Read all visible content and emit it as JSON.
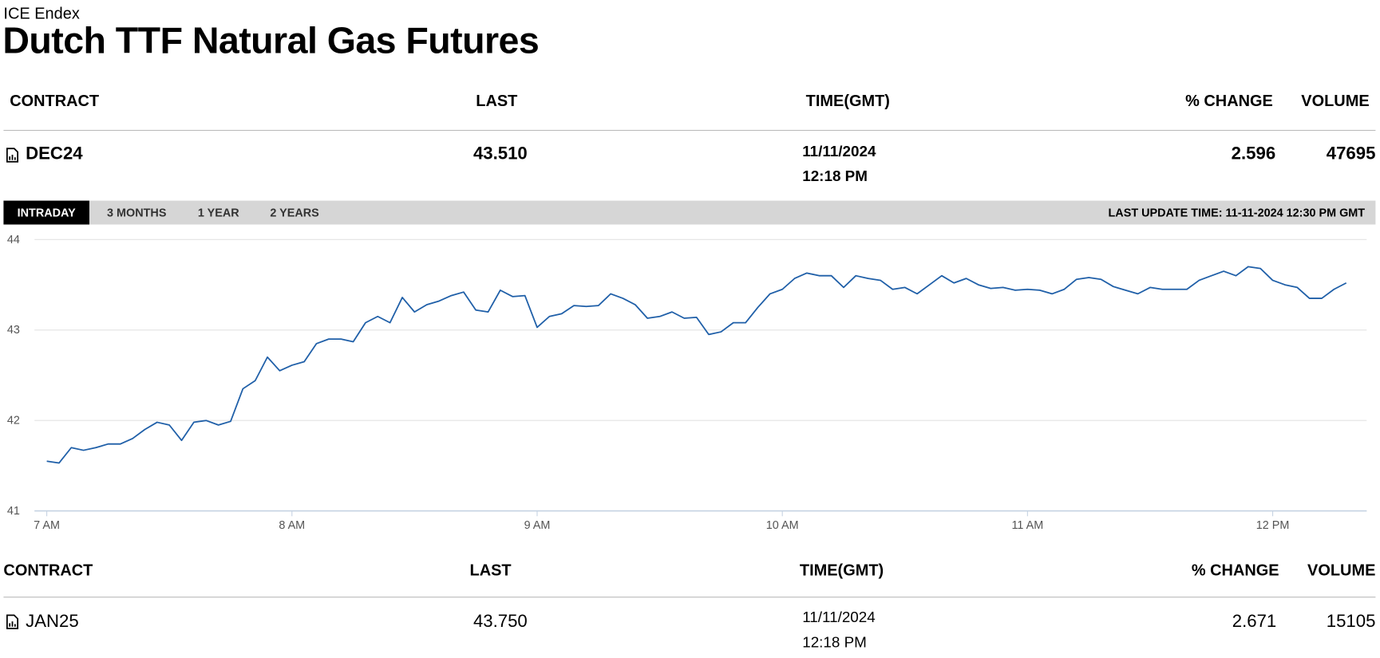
{
  "header": {
    "exchange": "ICE Endex",
    "title": "Dutch TTF Natural Gas Futures"
  },
  "tables": [
    {
      "columns": [
        "CONTRACT",
        "LAST",
        "TIME(GMT)",
        "% CHANGE",
        "VOLUME"
      ],
      "row": {
        "contract": "DEC24",
        "last": "43.510",
        "date": "11/11/2024",
        "time": "12:18 PM",
        "change": 2.596,
        "volume": 47695
      }
    },
    {
      "columns": [
        "CONTRACT",
        "LAST",
        "TIME(GMT)",
        "% CHANGE",
        "VOLUME"
      ],
      "row": {
        "contract": "JAN25",
        "last": "43.750",
        "date": "11/11/2024",
        "time": "12:18 PM",
        "change": 2.671,
        "volume": 15105
      }
    }
  ],
  "tabs": [
    "INTRADAY",
    "3 MONTHS",
    "1 YEAR",
    "2 YEARS"
  ],
  "active_tab": 0,
  "last_update": "LAST UPDATE TIME: 11-11-2024 12:30 PM GMT",
  "chart_data": {
    "type": "line",
    "color": "#1f5fa8",
    "grid": true,
    "x": [
      "07:00",
      "07:03",
      "07:06",
      "07:09",
      "07:12",
      "07:15",
      "07:18",
      "07:21",
      "07:24",
      "07:27",
      "07:30",
      "07:33",
      "07:36",
      "07:39",
      "07:42",
      "07:45",
      "07:48",
      "07:51",
      "07:54",
      "07:57",
      "08:00",
      "08:03",
      "08:06",
      "08:09",
      "08:12",
      "08:15",
      "08:18",
      "08:21",
      "08:24",
      "08:27",
      "08:30",
      "08:33",
      "08:36",
      "08:39",
      "08:42",
      "08:45",
      "08:48",
      "08:51",
      "08:54",
      "08:57",
      "09:00",
      "09:03",
      "09:06",
      "09:09",
      "09:12",
      "09:15",
      "09:18",
      "09:21",
      "09:24",
      "09:27",
      "09:30",
      "09:33",
      "09:36",
      "09:39",
      "09:42",
      "09:45",
      "09:48",
      "09:51",
      "09:54",
      "09:57",
      "10:00",
      "10:03",
      "10:06",
      "10:09",
      "10:12",
      "10:15",
      "10:18",
      "10:21",
      "10:24",
      "10:27",
      "10:30",
      "10:33",
      "10:36",
      "10:39",
      "10:42",
      "10:45",
      "10:48",
      "10:51",
      "10:54",
      "10:57",
      "11:00",
      "11:03",
      "11:06",
      "11:09",
      "11:12",
      "11:15",
      "11:18",
      "11:21",
      "11:24",
      "11:27",
      "11:30",
      "11:33",
      "11:36",
      "11:39",
      "11:42",
      "11:45",
      "11:48",
      "11:51",
      "11:54",
      "11:57",
      "12:00",
      "12:03",
      "12:06",
      "12:09",
      "12:12",
      "12:15",
      "12:18"
    ],
    "values": [
      41.55,
      41.53,
      41.7,
      41.67,
      41.7,
      41.74,
      41.74,
      41.8,
      41.9,
      41.98,
      41.95,
      41.78,
      41.98,
      42.0,
      41.95,
      41.99,
      42.35,
      42.44,
      42.7,
      42.55,
      42.61,
      42.65,
      42.85,
      42.9,
      42.9,
      42.87,
      43.08,
      43.15,
      43.08,
      43.36,
      43.2,
      43.28,
      43.32,
      43.38,
      43.42,
      43.22,
      43.2,
      43.44,
      43.37,
      43.38,
      43.03,
      43.15,
      43.18,
      43.27,
      43.26,
      43.27,
      43.4,
      43.35,
      43.28,
      43.13,
      43.15,
      43.2,
      43.13,
      43.14,
      42.95,
      42.98,
      43.08,
      43.08,
      43.25,
      43.4,
      43.45,
      43.57,
      43.63,
      43.6,
      43.6,
      43.47,
      43.6,
      43.57,
      43.55,
      43.45,
      43.47,
      43.4,
      43.5,
      43.6,
      43.52,
      43.57,
      43.5,
      43.46,
      43.47,
      43.44,
      43.45,
      43.44,
      43.4,
      43.45,
      43.56,
      43.58,
      43.56,
      43.48,
      43.44,
      43.4,
      43.47,
      43.45,
      43.45,
      43.45,
      43.55,
      43.6,
      43.65,
      43.6,
      43.7,
      43.68,
      43.55,
      43.5,
      43.47,
      43.35,
      43.35,
      43.45,
      43.52
    ],
    "xlim": [
      "06:57",
      "12:23"
    ],
    "xticks": [
      {
        "value": "07:00",
        "label": "7 AM"
      },
      {
        "value": "08:00",
        "label": "8 AM"
      },
      {
        "value": "09:00",
        "label": "9 AM"
      },
      {
        "value": "10:00",
        "label": "10 AM"
      },
      {
        "value": "11:00",
        "label": "11 AM"
      },
      {
        "value": "12:00",
        "label": "12 PM"
      }
    ],
    "ylim": [
      41,
      44
    ],
    "yticks": [
      41,
      42,
      43,
      44
    ]
  }
}
